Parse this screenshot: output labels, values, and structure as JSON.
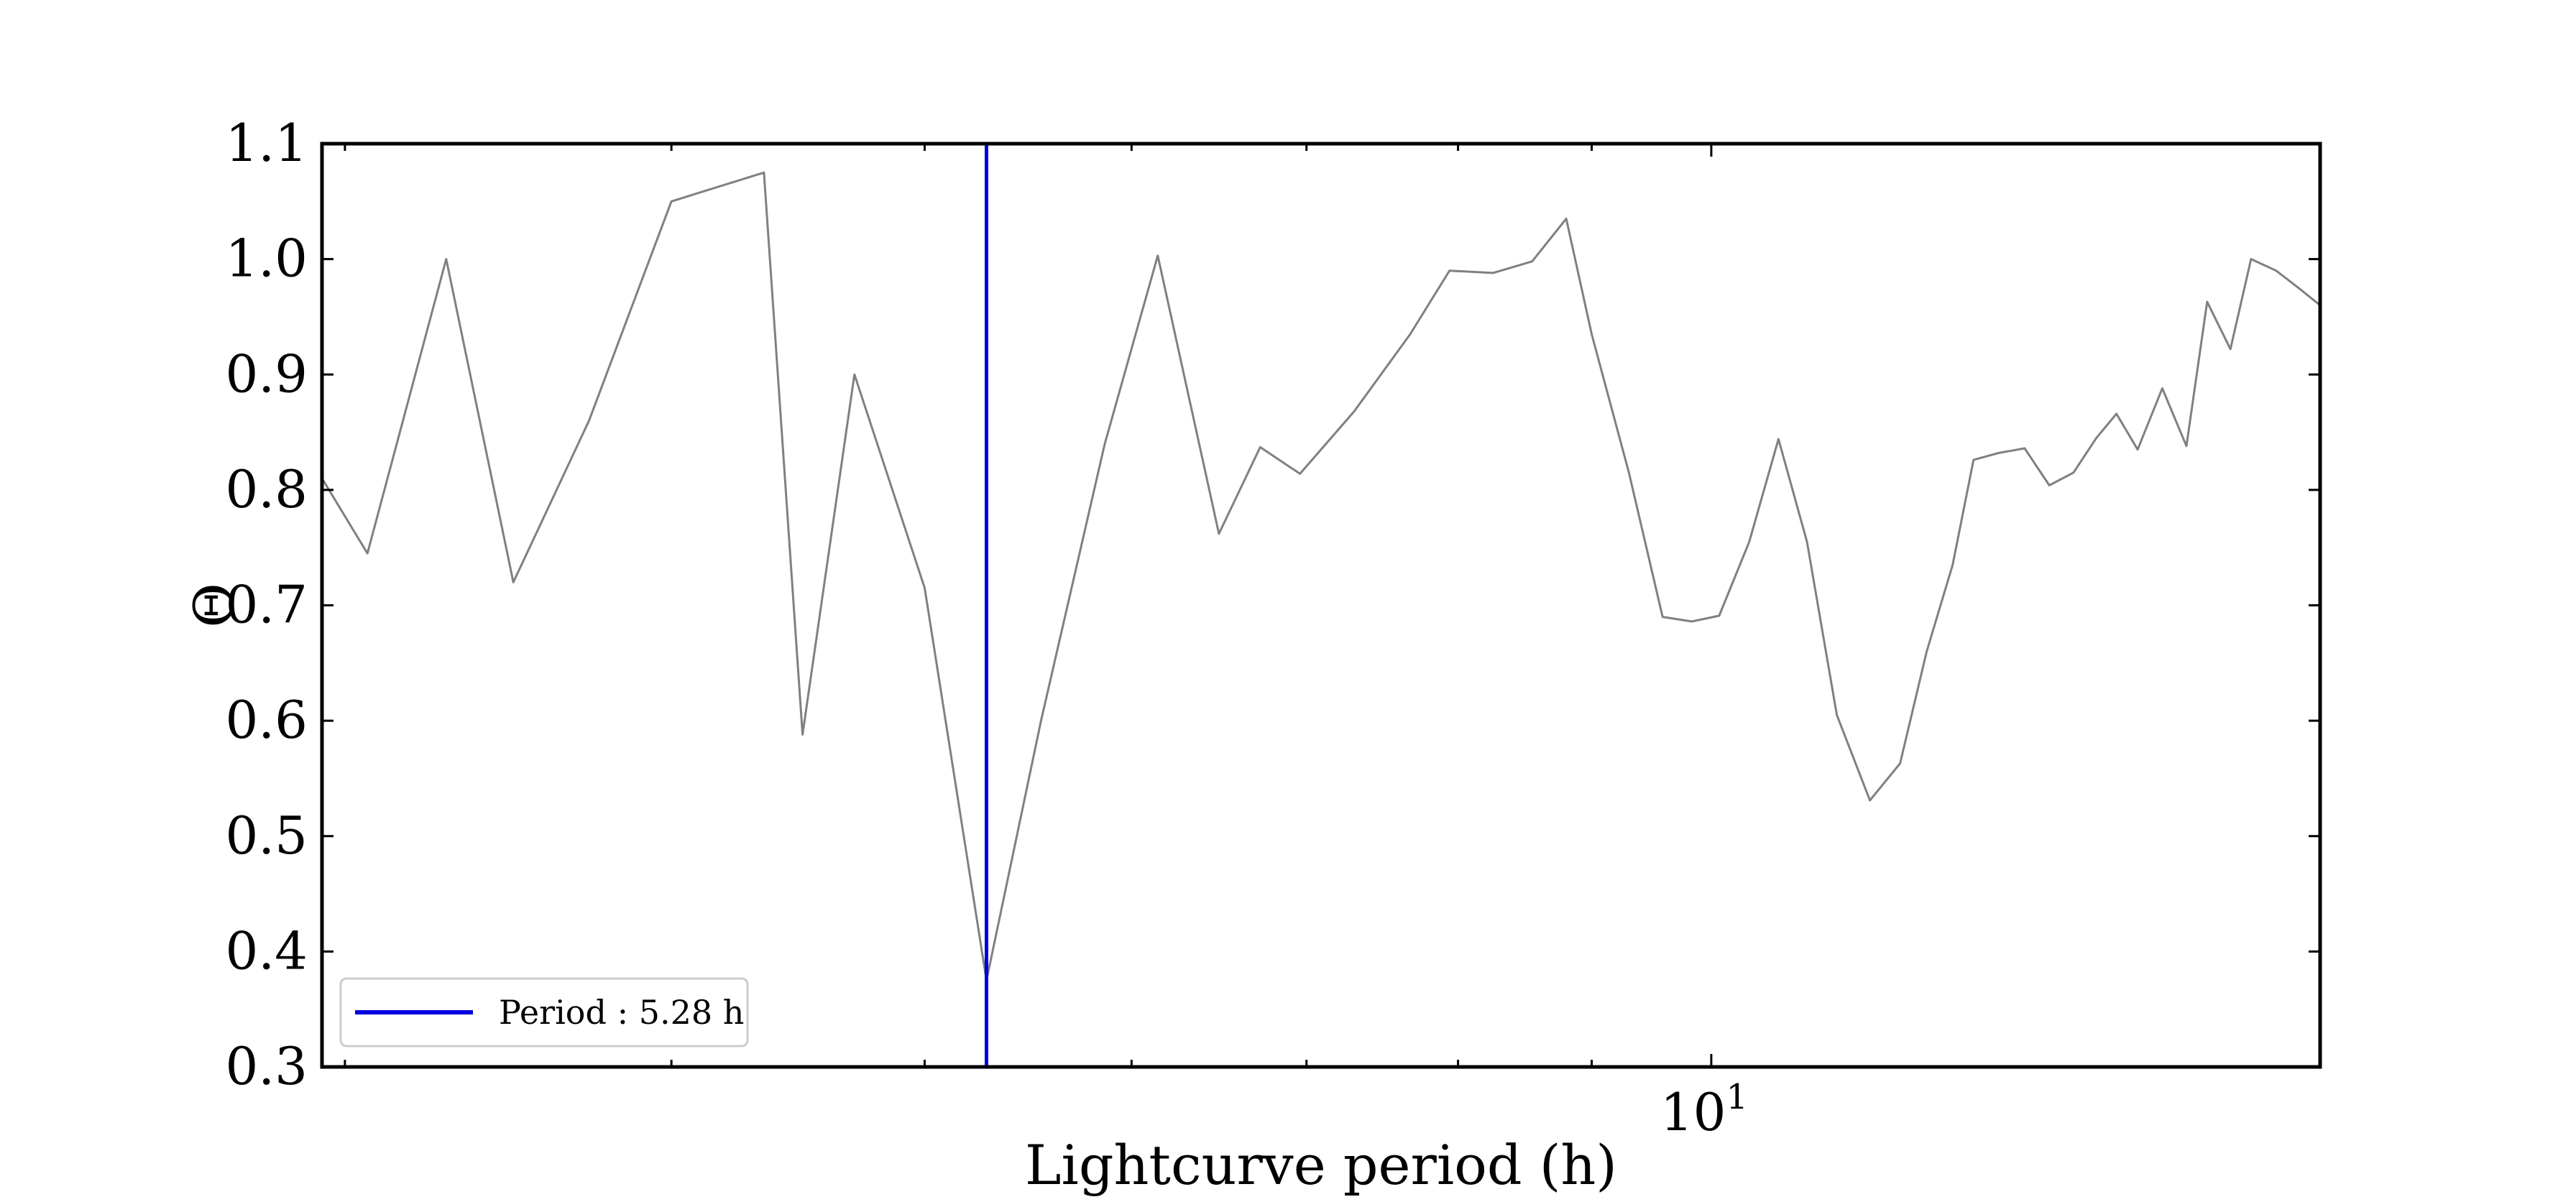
{
  "chart_data": {
    "type": "line",
    "xlabel": "Lightcurve period (h)",
    "ylabel": "Θ",
    "xscale": "log",
    "xlim": [
      2.94,
      17.1
    ],
    "ylim": [
      0.3,
      1.1
    ],
    "yticks": [
      "0.3",
      "0.4",
      "0.5",
      "0.6",
      "0.7",
      "0.8",
      "0.9",
      "1.0",
      "1.1"
    ],
    "xtick_major": [
      {
        "value": 10,
        "base": "10",
        "exp": "1"
      }
    ],
    "xtick_minor": [
      3,
      4,
      5,
      6,
      7,
      8,
      9
    ],
    "grid": false,
    "legend_position": "lower-left",
    "series": [
      {
        "line_color": "#808080",
        "x": [
          2.94,
          3.06,
          3.28,
          3.48,
          3.72,
          4.0,
          4.34,
          4.49,
          4.7,
          5.0,
          5.28,
          5.54,
          5.86,
          6.14,
          6.48,
          6.72,
          6.96,
          7.3,
          7.67,
          7.94,
          8.25,
          8.54,
          8.8,
          9.0,
          9.3,
          9.58,
          9.83,
          10.07,
          10.34,
          10.61,
          10.88,
          11.17,
          11.5,
          11.81,
          12.09,
          12.37,
          12.6,
          12.88,
          13.18,
          13.47,
          13.76,
          14.04,
          14.29,
          14.56,
          14.88,
          15.2,
          15.48,
          15.8,
          16.09,
          16.45,
          16.8,
          17.1
        ],
        "y": [
          0.81,
          0.745,
          1.0,
          0.72,
          0.86,
          1.05,
          1.075,
          0.588,
          0.9,
          0.715,
          0.375,
          0.6,
          0.84,
          1.003,
          0.762,
          0.837,
          0.814,
          0.868,
          0.935,
          0.99,
          0.988,
          0.998,
          1.035,
          0.935,
          0.815,
          0.69,
          0.686,
          0.691,
          0.755,
          0.844,
          0.755,
          0.605,
          0.531,
          0.563,
          0.66,
          0.735,
          0.826,
          0.832,
          0.836,
          0.804,
          0.815,
          0.845,
          0.866,
          0.835,
          0.888,
          0.838,
          0.963,
          0.922,
          1.0,
          0.99,
          0.974,
          0.96
        ]
      }
    ],
    "vline": {
      "x": 5.28,
      "color": "#0000dd"
    },
    "legend": [
      {
        "label": "Period :  5.28 h",
        "color": "#0000dd"
      }
    ]
  }
}
